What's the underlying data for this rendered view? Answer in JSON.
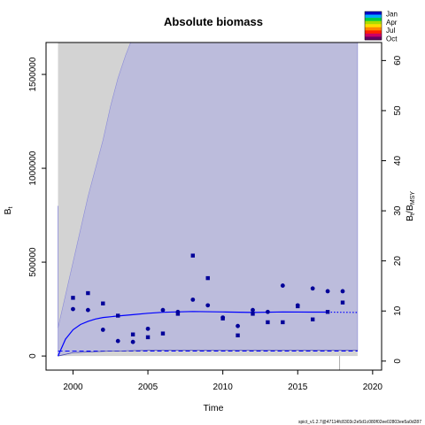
{
  "chart_data": {
    "type": "scatter",
    "title": "Absolute biomass",
    "xlabel": "Time",
    "ylabel_left": "B",
    "ylabel_left_sub": "t",
    "ylabel_right": "B",
    "ylabel_right_sub1": "t",
    "ylabel_right_mid": "/B",
    "ylabel_right_sub2": "MSY",
    "xlim": [
      1998.2,
      2020.6
    ],
    "ylim": [
      -75000,
      1670000
    ],
    "ylim_right": [
      -1.8,
      63.6
    ],
    "xticks": [
      "2000",
      "2005",
      "2010",
      "2015",
      "2020"
    ],
    "yticks": [
      "0",
      "500000",
      "1000000",
      "1500000"
    ],
    "yticks_right": [
      "0",
      "10",
      "20",
      "30",
      "40",
      "50",
      "60"
    ],
    "bmsy": 26200,
    "legend": {
      "placement": "top-right",
      "labels": [
        "Jan",
        "Apr",
        "Jul",
        "Oct"
      ],
      "colors": [
        "#0000cc",
        "#00aaff",
        "#00cc44",
        "#aadd00",
        "#ffdd00",
        "#ff8800",
        "#ff2200",
        "#cc0066",
        "#660066"
      ]
    },
    "colors": {
      "ci_band": "#bcbcdc",
      "outer_band": "#d3d3d3",
      "estimate_line": "#0000ff",
      "points": "#000099"
    },
    "estimate": {
      "x": [
        1999.0,
        1999.5,
        2000.0,
        2000.5,
        2001.0,
        2001.5,
        2002.0,
        2003.0,
        2004.0,
        2005.0,
        2006.0,
        2008.0,
        2010.0,
        2012.0,
        2014.0,
        2016.0,
        2017.0
      ],
      "y": [
        0,
        90000,
        140000,
        168000,
        185000,
        197000,
        205000,
        213000,
        220000,
        228000,
        233000,
        237000,
        235000,
        232000,
        235000,
        234000,
        234000
      ]
    },
    "forecast": {
      "x": [
        2017.0,
        2018.0,
        2019.0
      ],
      "y": [
        234000,
        233000,
        232000
      ]
    },
    "upper_ci": {
      "x": [
        1999.0,
        2000.0,
        2001.0,
        2002.0,
        2002.5,
        2003.0,
        2003.5,
        2004.0
      ],
      "y": [
        150000,
        500000,
        850000,
        1150000,
        1330000,
        1480000,
        1600000,
        1700000
      ]
    },
    "lower_ci": {
      "x": [
        1999.0,
        2000.0,
        2002.0,
        2005.0,
        2019.0
      ],
      "y": [
        0,
        18000,
        25000,
        30000,
        30000
      ]
    },
    "observations_circle": {
      "x": [
        2000,
        2001,
        2002,
        2003,
        2004,
        2005,
        2006,
        2007,
        2008,
        2009,
        2010,
        2011,
        2012,
        2013,
        2014,
        2015,
        2016,
        2017,
        2018
      ],
      "y": [
        250000,
        245000,
        140000,
        80000,
        75000,
        145000,
        245000,
        235000,
        300000,
        270000,
        205000,
        160000,
        245000,
        235000,
        375000,
        270000,
        360000,
        345000,
        345000
      ]
    },
    "observations_square": {
      "x": [
        2000,
        2001,
        2002,
        2003,
        2004,
        2005,
        2006,
        2007,
        2008,
        2009,
        2010,
        2011,
        2012,
        2013,
        2014,
        2015,
        2016,
        2017,
        2018
      ],
      "y": [
        310000,
        335000,
        280000,
        215000,
        115000,
        100000,
        120000,
        225000,
        535000,
        415000,
        200000,
        110000,
        225000,
        180000,
        180000,
        265000,
        195000,
        235000,
        285000
      ]
    },
    "footer_text": "spict_v1.2.7@47114fc8303c2e5d1c080f02ee02803ee5a0d287"
  }
}
